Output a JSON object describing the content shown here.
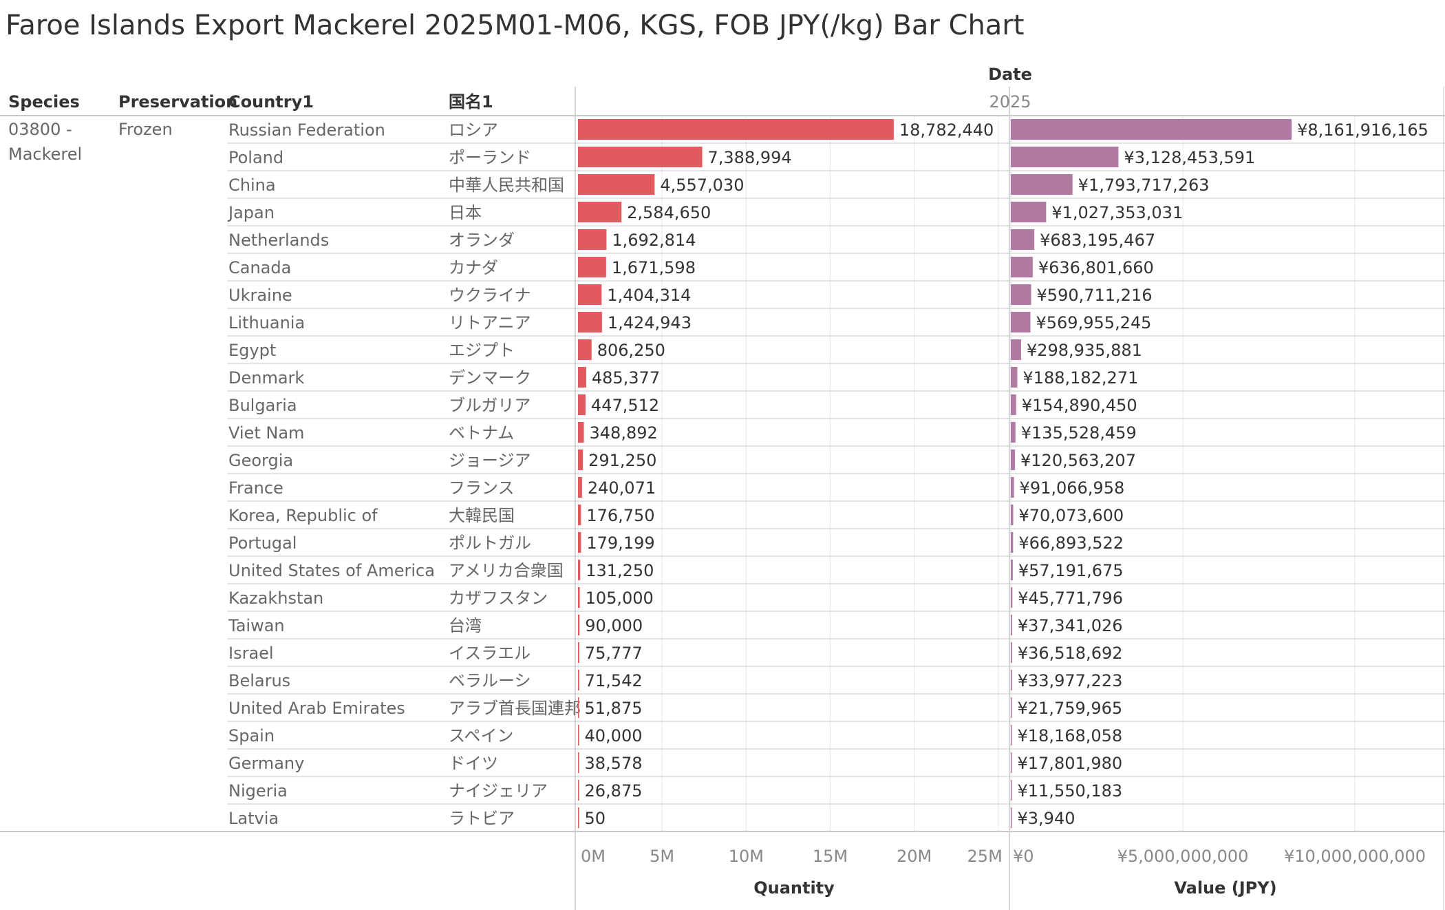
{
  "title": "Faroe Islands Export Mackerel 2025M01-M06, KGS, FOB JPY(/kg) Bar Chart",
  "headers": {
    "species": "Species",
    "preservation": "Preservation",
    "country": "Country1",
    "country_ja": "国名1",
    "date_label": "Date",
    "date_value": "2025"
  },
  "species_value": [
    "03800 -",
    "Mackerel"
  ],
  "preservation_value": "Frozen",
  "colors": {
    "quantity_bar": "#e2595e",
    "value_bar": "#b07aa1",
    "grid": "#e6e6e6",
    "rule": "#c8c8c8"
  },
  "chart_data": {
    "type": "bar",
    "orientation": "horizontal",
    "categories": [
      "Russian Federation",
      "Poland",
      "China",
      "Japan",
      "Netherlands",
      "Canada",
      "Ukraine",
      "Lithuania",
      "Egypt",
      "Denmark",
      "Bulgaria",
      "Viet Nam",
      "Georgia",
      "France",
      "Korea, Republic of",
      "Portugal",
      "United States of America",
      "Kazakhstan",
      "Taiwan",
      "Israel",
      "Belarus",
      "United Arab Emirates",
      "Spain",
      "Germany",
      "Nigeria",
      "Latvia"
    ],
    "categories_ja": [
      "ロシア",
      "ポーランド",
      "中華人民共和国",
      "日本",
      "オランダ",
      "カナダ",
      "ウクライナ",
      "リトアニア",
      "エジプト",
      "デンマーク",
      "ブルガリア",
      "ベトナム",
      "ジョージア",
      "フランス",
      "大韓民国",
      "ポルトガル",
      "アメリカ合衆国",
      "カザフスタン",
      "台湾",
      "イスラエル",
      "ベラルーシ",
      "アラブ首長国連邦",
      "スペイン",
      "ドイツ",
      "ナイジェリア",
      "ラトビア"
    ],
    "series": [
      {
        "name": "Quantity",
        "values": [
          18782440,
          7388994,
          4557030,
          2584650,
          1692814,
          1671598,
          1404314,
          1424943,
          806250,
          485377,
          447512,
          348892,
          291250,
          240071,
          176750,
          179199,
          131250,
          105000,
          90000,
          75777,
          71542,
          51875,
          40000,
          38578,
          26875,
          50
        ],
        "labels": [
          "18,782,440",
          "7,388,994",
          "4,557,030",
          "2,584,650",
          "1,692,814",
          "1,671,598",
          "1,404,314",
          "1,424,943",
          "806,250",
          "485,377",
          "447,512",
          "348,892",
          "291,250",
          "240,071",
          "176,750",
          "179,199",
          "131,250",
          "105,000",
          "90,000",
          "75,777",
          "71,542",
          "51,875",
          "40,000",
          "38,578",
          "26,875",
          "50"
        ],
        "xlim": [
          0,
          25500000
        ],
        "ticks": [
          0,
          5000000,
          10000000,
          15000000,
          20000000,
          25000000
        ],
        "tick_labels": [
          "0M",
          "5M",
          "10M",
          "15M",
          "20M",
          "25M"
        ]
      },
      {
        "name": "Value (JPY)",
        "values": [
          8161916165,
          3128453591,
          1793717263,
          1027353031,
          683195467,
          636801660,
          590711216,
          569955245,
          298935881,
          188182271,
          154890450,
          135528459,
          120563207,
          91066958,
          70073600,
          66893522,
          57191675,
          45771796,
          37341026,
          36518692,
          33977223,
          21759965,
          18168058,
          17801980,
          11550183,
          3940
        ],
        "labels": [
          "¥8,161,916,165",
          "¥3,128,453,591",
          "¥1,793,717,263",
          "¥1,027,353,031",
          "¥683,195,467",
          "¥636,801,660",
          "¥590,711,216",
          "¥569,955,245",
          "¥298,935,881",
          "¥188,182,271",
          "¥154,890,450",
          "¥135,528,459",
          "¥120,563,207",
          "¥91,066,958",
          "¥70,073,600",
          "¥66,893,522",
          "¥57,191,675",
          "¥45,771,796",
          "¥37,341,026",
          "¥36,518,692",
          "¥33,977,223",
          "¥21,759,965",
          "¥18,168,058",
          "¥17,801,980",
          "¥11,550,183",
          "¥3,940"
        ],
        "xlim": [
          0,
          12500000000
        ],
        "ticks": [
          0,
          5000000000,
          10000000000
        ],
        "tick_labels": [
          "¥0",
          "¥5,000,000,000",
          "¥10,000,000,000"
        ]
      }
    ],
    "xlabels": [
      "Quantity",
      "Value (JPY)"
    ]
  }
}
